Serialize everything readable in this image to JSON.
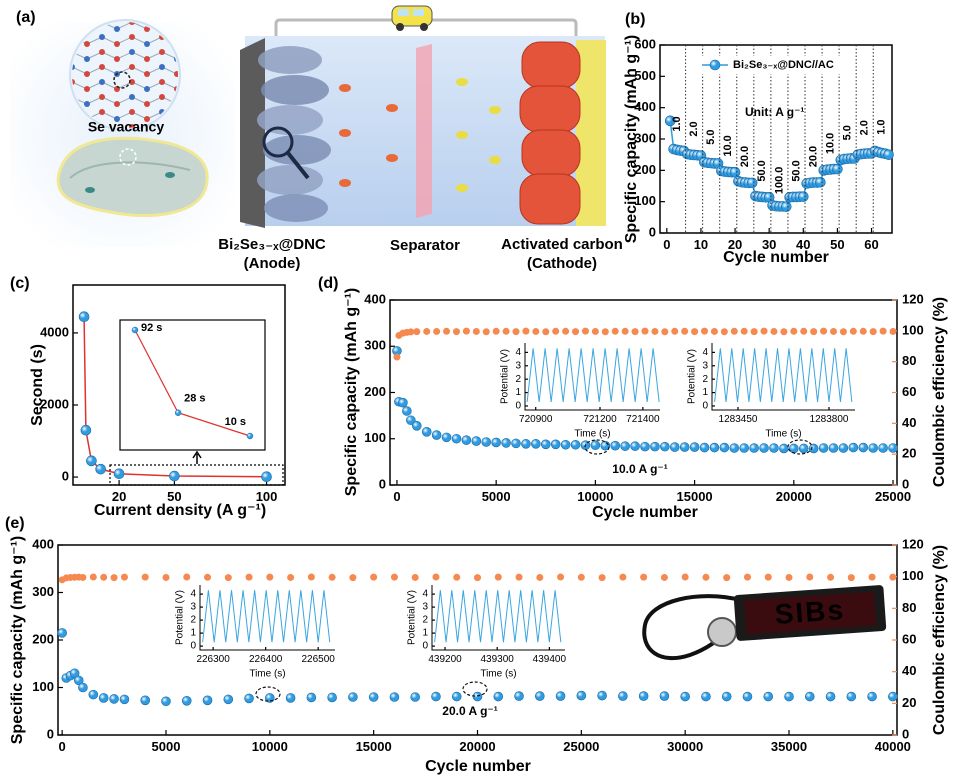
{
  "panel_a": {
    "label": "(a)",
    "se_vacancy": "Se vacancy",
    "anode": "Bi₂Se₃₋ₓ@DNC",
    "anode_role": "(Anode)",
    "separator": "Separator",
    "cathode": "Activated carbon",
    "cathode_role": "(Cathode)"
  },
  "chart_data": [
    {
      "panel": "(b)",
      "type": "line",
      "markers": true,
      "xlabel": "Cycle number",
      "ylabel": "Specific capacity (mAh g⁻¹)",
      "xlim": [
        -2,
        66
      ],
      "xticks": [
        0,
        10,
        20,
        30,
        40,
        50,
        60
      ],
      "ylim": [
        0,
        600
      ],
      "yticks": [
        0,
        100,
        200,
        300,
        400,
        500,
        600
      ],
      "x": [
        1,
        2,
        3,
        4,
        5,
        6,
        7,
        8,
        9,
        10,
        11,
        12,
        13,
        14,
        15,
        16,
        17,
        18,
        19,
        20,
        21,
        22,
        23,
        24,
        25,
        26,
        27,
        28,
        29,
        30,
        31,
        32,
        33,
        34,
        35,
        36,
        37,
        38,
        39,
        40,
        41,
        42,
        43,
        44,
        45,
        46,
        47,
        48,
        49,
        50,
        51,
        52,
        53,
        54,
        55,
        56,
        57,
        58,
        59,
        60,
        61,
        62,
        63,
        64,
        65
      ],
      "series": [
        {
          "name": "Bi₂Se₃₋ₓ@DNC//AC",
          "color": "#2f9be0",
          "values": [
            358,
            268,
            265,
            263,
            262,
            252,
            250,
            249,
            248,
            247,
            226,
            224,
            223,
            222,
            222,
            198,
            196,
            195,
            194,
            194,
            165,
            162,
            161,
            160,
            160,
            118,
            116,
            115,
            114,
            114,
            88,
            86,
            85,
            85,
            84,
            114,
            115,
            115,
            116,
            116,
            158,
            160,
            161,
            161,
            162,
            200,
            202,
            203,
            204,
            204,
            233,
            236,
            237,
            238,
            238,
            250,
            252,
            253,
            254,
            254,
            262,
            258,
            255,
            253,
            250
          ]
        }
      ],
      "rate_labels": [
        "1.0",
        "2.0",
        "5.0",
        "10.0",
        "20.0",
        "50.0",
        "100.0",
        "50.0",
        "20.0",
        "10.0",
        "5.0",
        "2.0",
        "1.0"
      ],
      "unit_label": "Unit: A g⁻¹",
      "legend": "upper right"
    },
    {
      "panel": "(c)",
      "type": "line",
      "markers": true,
      "xlabel": "Current density (A g⁻¹)",
      "ylabel": "Second (s)",
      "xlim": [
        -5,
        110
      ],
      "xticks": [
        20,
        50,
        100
      ],
      "ylim": [
        -220,
        5330
      ],
      "yticks": [
        0,
        2000,
        4000
      ],
      "x": [
        1,
        2,
        5,
        10,
        20,
        50,
        100
      ],
      "series": [
        {
          "color": "#2f9be0",
          "line_color": "#e0312f",
          "values": [
            4450,
            1300,
            450,
            220,
            92,
            28,
            10
          ]
        }
      ],
      "inset": {
        "x": [
          20,
          50,
          100
        ],
        "values": [
          92,
          28,
          10
        ],
        "value_labels": [
          "92 s",
          "28 s",
          "10 s"
        ]
      }
    },
    {
      "panel": "(d)",
      "type": "scatter",
      "xlabel": "Cycle number",
      "ylabel": "Specific capacity (mAh g⁻¹)",
      "y2label": "Coulombic efficiency (%)",
      "xlim": [
        -350,
        25200
      ],
      "xticks": [
        0,
        5000,
        10000,
        15000,
        20000,
        25000
      ],
      "ylim": [
        0,
        400
      ],
      "yticks": [
        0,
        100,
        200,
        300,
        400
      ],
      "y2lim": [
        0,
        120
      ],
      "y2ticks": [
        0,
        20,
        40,
        60,
        80,
        100,
        120
      ],
      "x": [
        0,
        100,
        300,
        500,
        700,
        1000,
        1500,
        2000,
        2500,
        3000,
        3500,
        4000,
        4500,
        5000,
        5500,
        6000,
        6500,
        7000,
        7500,
        8000,
        8500,
        9000,
        9500,
        10000,
        10500,
        11000,
        11500,
        12000,
        12500,
        13000,
        13500,
        14000,
        14500,
        15000,
        15500,
        16000,
        16500,
        17000,
        17500,
        18000,
        18500,
        19000,
        19500,
        20000,
        20500,
        21000,
        21500,
        22000,
        22500,
        23000,
        23500,
        24000,
        24500,
        25000
      ],
      "series": [
        {
          "color": "#2f9be0",
          "values": [
            290,
            180,
            178,
            160,
            140,
            128,
            115,
            108,
            103,
            100,
            97,
            95,
            93,
            92,
            91,
            90,
            89,
            89,
            88,
            88,
            87,
            87,
            86,
            86,
            85,
            85,
            84,
            84,
            83,
            83,
            83,
            82,
            82,
            82,
            81,
            81,
            81,
            80,
            80,
            80,
            80,
            80,
            79,
            79,
            79,
            79,
            80,
            80,
            80,
            81,
            81,
            80,
            80,
            80
          ]
        },
        {
          "color": "#f5894f",
          "axis": "y2",
          "values": [
            83,
            97,
            98.5,
            99,
            99.3,
            99.5,
            99.6,
            99.6,
            99.7,
            99.5,
            99.8,
            99.6,
            99.4,
            99.7,
            99.7,
            99.5,
            99.8,
            99.6,
            99.4,
            99.7,
            99.7,
            99.5,
            99.8,
            99.6,
            99.4,
            99.7,
            99.7,
            99.5,
            99.8,
            99.6,
            99.4,
            99.7,
            99.7,
            99.5,
            99.8,
            99.6,
            99.4,
            99.7,
            99.7,
            99.5,
            99.8,
            99.6,
            99.4,
            99.7,
            99.7,
            99.5,
            99.8,
            99.6,
            99.4,
            99.7,
            99.7,
            99.5,
            99.8,
            99.6
          ]
        }
      ],
      "annotations": [
        "10.0 A g⁻¹"
      ],
      "insets": [
        {
          "type": "line",
          "xlabel": "Time (s)",
          "ylabel": "Potential (V)",
          "xlim": [
            720850,
            721480
          ],
          "xticks": [
            720900,
            721200,
            721400
          ],
          "ylim": [
            -0.3,
            4.7
          ],
          "yticks": [
            0,
            1,
            2,
            3,
            4
          ],
          "x": [
            720860,
            720888,
            720916,
            720944,
            720972,
            721000,
            721028,
            721056,
            721084,
            721112,
            721140,
            721168,
            721196,
            721224,
            721252,
            721280,
            721308,
            721336,
            721364,
            721392,
            721420,
            721448,
            721476
          ],
          "series": [
            {
              "color": "#3aa6e0",
              "values": [
                0.3,
                4.3,
                0.3,
                4.3,
                0.3,
                4.3,
                0.3,
                4.3,
                0.3,
                4.3,
                0.3,
                4.3,
                0.3,
                4.3,
                0.3,
                4.3,
                0.3,
                4.3,
                0.3,
                4.3,
                0.3,
                4.3,
                0.3
              ]
            }
          ]
        },
        {
          "type": "line",
          "xlabel": "Time (s)",
          "ylabel": "Potential (V)",
          "xlim": [
            1283350,
            1283900
          ],
          "xticks": [
            1283450,
            1283800
          ],
          "ylim": [
            -0.3,
            4.7
          ],
          "yticks": [
            0,
            1,
            2,
            3,
            4
          ],
          "x": [
            1283360,
            1283382,
            1283404,
            1283426,
            1283448,
            1283470,
            1283492,
            1283514,
            1283536,
            1283558,
            1283580,
            1283602,
            1283624,
            1283646,
            1283668,
            1283690,
            1283712,
            1283734,
            1283756,
            1283778,
            1283800,
            1283822,
            1283844,
            1283866,
            1283888
          ],
          "series": [
            {
              "color": "#3aa6e0",
              "values": [
                0.3,
                4.3,
                0.3,
                4.3,
                0.3,
                4.3,
                0.3,
                4.3,
                0.3,
                4.3,
                0.3,
                4.3,
                0.3,
                4.3,
                0.3,
                4.3,
                0.3,
                4.3,
                0.3,
                4.3,
                0.3,
                4.3,
                0.3,
                4.3,
                0.3
              ]
            }
          ]
        }
      ]
    },
    {
      "panel": "(e)",
      "type": "scatter",
      "xlabel": "Cycle number",
      "ylabel": "Specific capacity (mAh g⁻¹)",
      "y2label": "Coulombic efficiency (%)",
      "xlim": [
        -200,
        40200
      ],
      "xticks": [
        0,
        5000,
        10000,
        15000,
        20000,
        25000,
        30000,
        35000,
        40000
      ],
      "ylim": [
        0,
        400
      ],
      "yticks": [
        0,
        100,
        200,
        300,
        400
      ],
      "y2lim": [
        0,
        120
      ],
      "y2ticks": [
        0,
        20,
        40,
        60,
        80,
        100,
        120
      ],
      "x": [
        0,
        200,
        400,
        600,
        800,
        1000,
        1500,
        2000,
        2500,
        3000,
        4000,
        5000,
        6000,
        7000,
        8000,
        9000,
        10000,
        11000,
        12000,
        13000,
        14000,
        15000,
        16000,
        17000,
        18000,
        19000,
        20000,
        21000,
        22000,
        23000,
        24000,
        25000,
        26000,
        27000,
        28000,
        29000,
        30000,
        31000,
        32000,
        33000,
        34000,
        35000,
        36000,
        37000,
        38000,
        39000,
        40000
      ],
      "series": [
        {
          "color": "#2f9be0",
          "values": [
            215,
            120,
            125,
            130,
            115,
            100,
            85,
            78,
            76,
            75,
            73,
            71,
            72,
            73,
            75,
            77,
            78,
            78,
            79,
            79,
            80,
            80,
            80,
            80,
            81,
            81,
            81,
            81,
            82,
            82,
            82,
            83,
            83,
            82,
            82,
            82,
            81,
            81,
            81,
            81,
            81,
            81,
            81,
            81,
            81,
            81,
            81
          ]
        },
        {
          "color": "#f5894f",
          "axis": "y2",
          "values": [
            98,
            99.2,
            99.5,
            99.6,
            99.7,
            99.5,
            99.8,
            99.6,
            99.4,
            99.7,
            99.7,
            99.5,
            99.8,
            99.6,
            99.4,
            99.7,
            99.7,
            99.5,
            99.8,
            99.6,
            99.4,
            99.7,
            99.7,
            99.5,
            99.8,
            99.6,
            99.4,
            99.7,
            99.7,
            99.5,
            99.8,
            99.6,
            99.4,
            99.7,
            99.7,
            99.5,
            99.8,
            99.6,
            99.4,
            99.7,
            99.7,
            99.5,
            99.8,
            99.6,
            99.4,
            99.7,
            99.7
          ]
        }
      ],
      "annotations": [
        "20.0 A g⁻¹"
      ],
      "photo_text": "SIBs",
      "insets": [
        {
          "type": "line",
          "xlabel": "Time (s)",
          "ylabel": "Potential (V)",
          "xlim": [
            226275,
            226532
          ],
          "xticks": [
            226300,
            226400,
            226500
          ],
          "ylim": [
            -0.3,
            4.7
          ],
          "yticks": [
            0,
            1,
            2,
            3,
            4
          ],
          "x": [
            226280,
            226291,
            226302,
            226313,
            226324,
            226335,
            226346,
            226357,
            226368,
            226379,
            226390,
            226401,
            226412,
            226423,
            226434,
            226445,
            226456,
            226467,
            226478,
            226489,
            226500,
            226511,
            226522
          ],
          "series": [
            {
              "color": "#3aa6e0",
              "values": [
                0.3,
                4.3,
                0.3,
                4.3,
                0.3,
                4.3,
                0.3,
                4.3,
                0.3,
                4.3,
                0.3,
                4.3,
                0.3,
                4.3,
                0.3,
                4.3,
                0.3,
                4.3,
                0.3,
                4.3,
                0.3,
                4.3,
                0.3
              ]
            }
          ]
        },
        {
          "type": "line",
          "xlabel": "Time (s)",
          "ylabel": "Potential (V)",
          "xlim": [
            439175,
            439430
          ],
          "xticks": [
            439200,
            439300,
            439400
          ],
          "ylim": [
            -0.3,
            4.7
          ],
          "yticks": [
            0,
            1,
            2,
            3,
            4
          ],
          "x": [
            439180,
            439191,
            439202,
            439213,
            439224,
            439235,
            439246,
            439257,
            439268,
            439279,
            439290,
            439301,
            439312,
            439323,
            439334,
            439345,
            439356,
            439367,
            439378,
            439389,
            439400,
            439411,
            439422
          ],
          "series": [
            {
              "color": "#3aa6e0",
              "values": [
                0.3,
                4.3,
                0.3,
                4.3,
                0.3,
                4.3,
                0.3,
                4.3,
                0.3,
                4.3,
                0.3,
                4.3,
                0.3,
                4.3,
                0.3,
                4.3,
                0.3,
                4.3,
                0.3,
                4.3,
                0.3,
                4.3,
                0.3
              ]
            }
          ]
        }
      ]
    }
  ]
}
